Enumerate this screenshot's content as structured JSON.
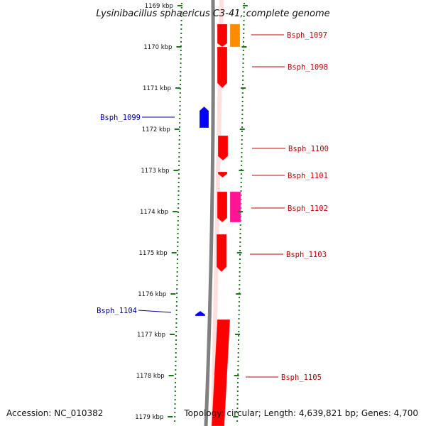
{
  "title": "Lysinibacillus sphaericus C3-41, complete genome",
  "accession": "Accession: NC_010382",
  "topology": "Topology: circular; Length: 4,639,821 bp; Genes: 4,700",
  "colors": {
    "background": "#ffffff",
    "tick": "#1a7a1a",
    "backbone": "#808080",
    "forward_gene": "#ff0000",
    "reverse_gene": "#0000ff",
    "gene_orange": "#ff8c00",
    "gene_pink": "#ff1493",
    "forward_label": "#cc0000",
    "reverse_label": "#0000aa"
  },
  "ticks": [
    "1169 kbp",
    "1170 kbp",
    "1171 kbp",
    "1172 kbp",
    "1173 kbp",
    "1174 kbp",
    "1175 kbp",
    "1176 kbp",
    "1177 kbp",
    "1178 kbp",
    "1179 kbp"
  ],
  "genes": [
    {
      "name": "Bsph_1097",
      "strand": "forward",
      "color": "orange"
    },
    {
      "name": "Bsph_1098",
      "strand": "forward",
      "color": "red"
    },
    {
      "name": "Bsph_1099",
      "strand": "reverse",
      "color": "blue"
    },
    {
      "name": "Bsph_1100",
      "strand": "forward",
      "color": "red"
    },
    {
      "name": "Bsph_1101",
      "strand": "forward",
      "color": "red"
    },
    {
      "name": "Bsph_1102",
      "strand": "forward",
      "color": "pink"
    },
    {
      "name": "Bsph_1103",
      "strand": "forward",
      "color": "red"
    },
    {
      "name": "Bsph_1104",
      "strand": "reverse",
      "color": "blue"
    },
    {
      "name": "Bsph_1105",
      "strand": "forward",
      "color": "red"
    }
  ]
}
